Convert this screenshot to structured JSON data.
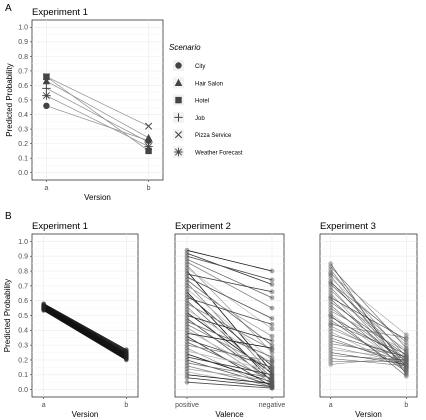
{
  "tags": {
    "a": "A",
    "b": "B"
  },
  "chart_data": [
    {
      "id": "A",
      "type": "line",
      "title": "Experiment 1",
      "xlabel": "Version",
      "ylabel": "Predicted Probability",
      "categories": [
        "a",
        "b"
      ],
      "ylim": [
        0,
        1
      ],
      "yticks": [
        "0.0",
        "0.1",
        "0.2",
        "0.3",
        "0.4",
        "0.5",
        "0.6",
        "0.7",
        "0.8",
        "0.9",
        "1.0"
      ],
      "legend": {
        "title": "Scenario",
        "position": "right"
      },
      "series": [
        {
          "name": "City",
          "marker": "circle",
          "values": [
            0.46,
            0.22
          ]
        },
        {
          "name": "Hair Salon",
          "marker": "triangle",
          "values": [
            0.63,
            0.24
          ]
        },
        {
          "name": "Hotel",
          "marker": "square",
          "values": [
            0.66,
            0.15
          ]
        },
        {
          "name": "Job",
          "marker": "plus",
          "values": [
            0.58,
            0.21
          ]
        },
        {
          "name": "Pizza Service",
          "marker": "x",
          "values": [
            0.66,
            0.32
          ]
        },
        {
          "name": "Weather Forecast",
          "marker": "asterisk",
          "values": [
            0.53,
            0.18
          ]
        }
      ]
    },
    {
      "id": "B1",
      "type": "line",
      "title": "Experiment 1",
      "xlabel": "Version",
      "ylabel": "Predicted Probability",
      "categories": [
        "a",
        "b"
      ],
      "ylim": [
        0,
        1
      ],
      "yticks": [
        "0.0",
        "0.1",
        "0.2",
        "0.3",
        "0.4",
        "0.5",
        "0.6",
        "0.7",
        "0.8",
        "0.9",
        "1.0"
      ],
      "pairs": [
        [
          0.58,
          0.27
        ],
        [
          0.575,
          0.262
        ],
        [
          0.57,
          0.255
        ],
        [
          0.566,
          0.248
        ],
        [
          0.562,
          0.242
        ],
        [
          0.558,
          0.236
        ],
        [
          0.554,
          0.23
        ],
        [
          0.55,
          0.224
        ],
        [
          0.546,
          0.218
        ],
        [
          0.542,
          0.212
        ],
        [
          0.538,
          0.206
        ],
        [
          0.534,
          0.2
        ],
        [
          0.56,
          0.24
        ],
        [
          0.552,
          0.226
        ],
        [
          0.544,
          0.21
        ]
      ]
    },
    {
      "id": "B2",
      "type": "line",
      "title": "Experiment 2",
      "xlabel": "Valence",
      "categories": [
        "positive",
        "negative"
      ],
      "ylim": [
        0,
        1
      ],
      "pairs": [
        [
          0.94,
          0.8
        ],
        [
          0.92,
          0.71
        ],
        [
          0.9,
          0.74
        ],
        [
          0.88,
          0.62
        ],
        [
          0.86,
          0.55
        ],
        [
          0.84,
          0.25
        ],
        [
          0.82,
          0.41
        ],
        [
          0.8,
          0.12
        ],
        [
          0.78,
          0.66
        ],
        [
          0.76,
          0.48
        ],
        [
          0.74,
          0.3
        ],
        [
          0.72,
          0.1
        ],
        [
          0.7,
          0.36
        ],
        [
          0.68,
          0.2
        ],
        [
          0.66,
          0.05
        ],
        [
          0.64,
          0.16
        ],
        [
          0.62,
          0.44
        ],
        [
          0.6,
          0.08
        ],
        [
          0.58,
          0.27
        ],
        [
          0.56,
          0.03
        ],
        [
          0.54,
          0.18
        ],
        [
          0.52,
          0.11
        ],
        [
          0.5,
          0.33
        ],
        [
          0.48,
          0.06
        ],
        [
          0.46,
          0.22
        ],
        [
          0.44,
          0.14
        ],
        [
          0.42,
          0.04
        ],
        [
          0.4,
          0.09
        ],
        [
          0.38,
          0.28
        ],
        [
          0.36,
          0.02
        ],
        [
          0.34,
          0.15
        ],
        [
          0.32,
          0.07
        ],
        [
          0.3,
          0.19
        ],
        [
          0.28,
          0.01
        ],
        [
          0.26,
          0.13
        ],
        [
          0.24,
          0.05
        ],
        [
          0.22,
          0.1
        ],
        [
          0.2,
          0.03
        ],
        [
          0.18,
          0.08
        ],
        [
          0.16,
          0.02
        ],
        [
          0.14,
          0.06
        ],
        [
          0.12,
          0.01
        ],
        [
          0.1,
          0.04
        ],
        [
          0.08,
          0.02
        ],
        [
          0.05,
          0.01
        ]
      ]
    },
    {
      "id": "B3",
      "type": "line",
      "title": "Experiment 3",
      "xlabel": "Version",
      "categories": [
        "a",
        "b"
      ],
      "ylim": [
        0,
        1
      ],
      "pairs": [
        [
          0.85,
          0.1
        ],
        [
          0.83,
          0.28
        ],
        [
          0.81,
          0.15
        ],
        [
          0.79,
          0.22
        ],
        [
          0.77,
          0.12
        ],
        [
          0.75,
          0.3
        ],
        [
          0.73,
          0.18
        ],
        [
          0.71,
          0.25
        ],
        [
          0.69,
          0.14
        ],
        [
          0.67,
          0.2
        ],
        [
          0.65,
          0.11
        ],
        [
          0.63,
          0.27
        ],
        [
          0.61,
          0.16
        ],
        [
          0.59,
          0.23
        ],
        [
          0.57,
          0.13
        ],
        [
          0.55,
          0.19
        ],
        [
          0.53,
          0.26
        ],
        [
          0.51,
          0.15
        ],
        [
          0.49,
          0.21
        ],
        [
          0.47,
          0.12
        ],
        [
          0.45,
          0.24
        ],
        [
          0.43,
          0.17
        ],
        [
          0.41,
          0.2
        ],
        [
          0.39,
          0.14
        ],
        [
          0.37,
          0.22
        ],
        [
          0.35,
          0.16
        ],
        [
          0.33,
          0.19
        ],
        [
          0.31,
          0.23
        ],
        [
          0.29,
          0.18
        ],
        [
          0.27,
          0.21
        ],
        [
          0.25,
          0.17
        ],
        [
          0.23,
          0.2
        ],
        [
          0.21,
          0.16
        ],
        [
          0.19,
          0.19
        ],
        [
          0.17,
          0.22
        ],
        [
          0.78,
          0.37
        ],
        [
          0.62,
          0.34
        ],
        [
          0.5,
          0.09
        ],
        [
          0.72,
          0.32
        ],
        [
          0.44,
          0.35
        ]
      ]
    }
  ]
}
